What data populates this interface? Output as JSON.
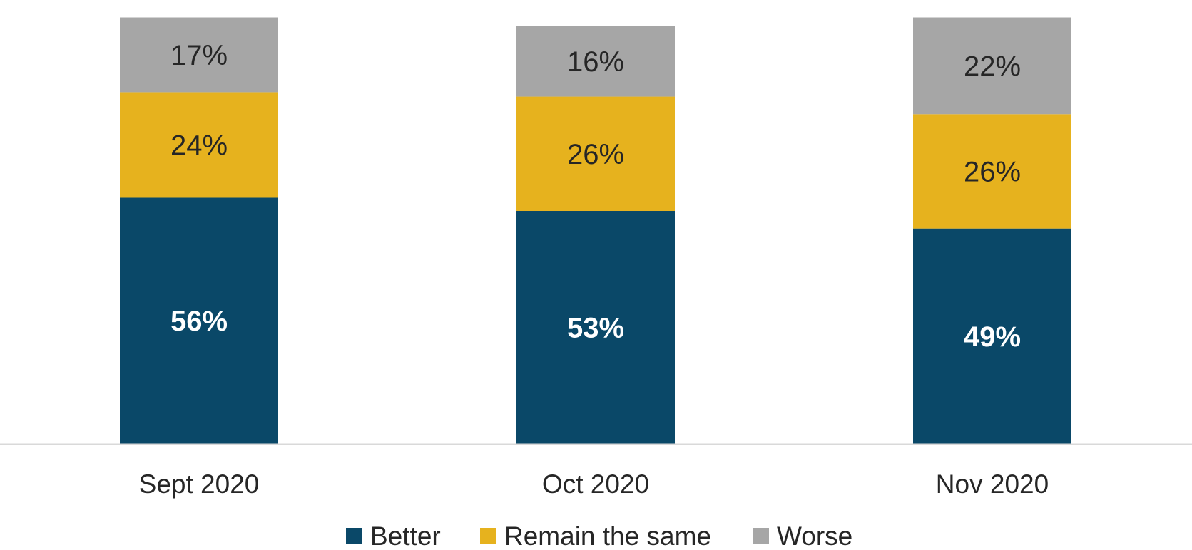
{
  "chart_data": {
    "type": "bar",
    "stacked": true,
    "categories": [
      "Sept 2020",
      "Oct 2020",
      "Nov 2020"
    ],
    "series": [
      {
        "name": "Better",
        "values": [
          56,
          53,
          49
        ],
        "labels": [
          "56%",
          "53%",
          "49%"
        ],
        "color": "#0A4868",
        "label_color": "#FFFFFF",
        "label_weight": "bold"
      },
      {
        "name": "Remain the same",
        "values": [
          24,
          26,
          26
        ],
        "labels": [
          "24%",
          "26%",
          "26%"
        ],
        "color": "#E6B21E",
        "label_color": "#262626",
        "label_weight": "normal"
      },
      {
        "name": "Worse",
        "values": [
          17,
          16,
          22
        ],
        "labels": [
          "17%",
          "16%",
          "22%"
        ],
        "color": "#A6A6A6",
        "label_color": "#262626",
        "label_weight": "normal"
      }
    ],
    "ylim": [
      0,
      100
    ],
    "grid": false,
    "legend": "bottom",
    "axis_color": "#D9D9D9"
  }
}
